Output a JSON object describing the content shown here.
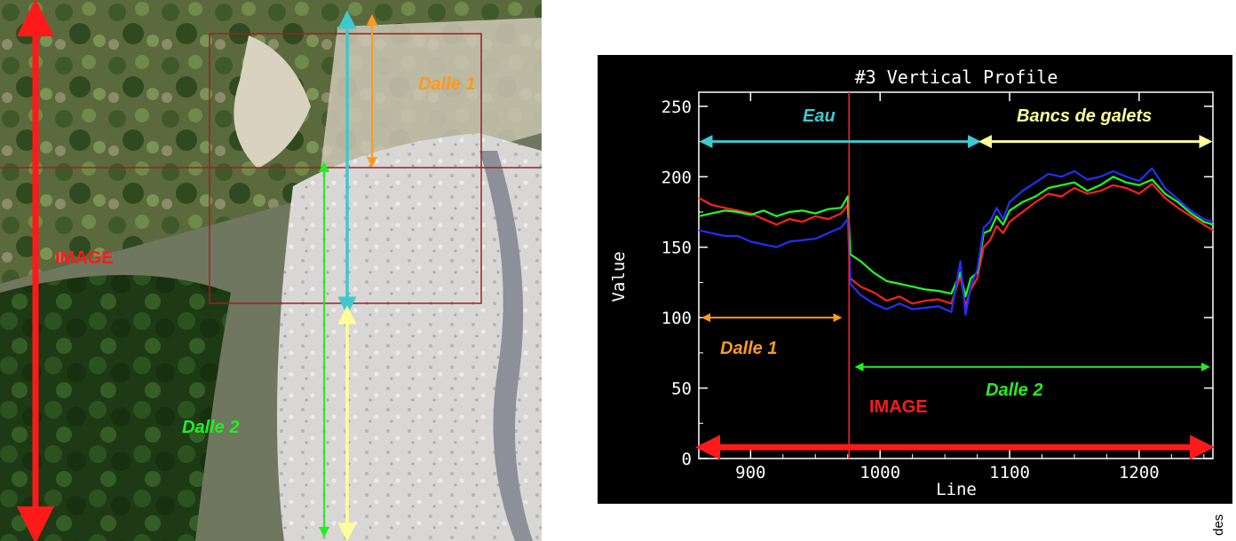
{
  "aerial": {
    "labels": {
      "image": "IMAGE",
      "dalle1": "Dalle 1",
      "dalle2": "Dalle 2"
    },
    "colors": {
      "image": "#ff1a1a",
      "dalle1": "#ff9a1a",
      "dalle2": "#22ee22",
      "eau": "#3ec8d0",
      "galets": "#ffff99",
      "frame": "#a02020"
    }
  },
  "chart_data": {
    "type": "line",
    "title": "#3 Vertical Profile",
    "xlabel": "Line",
    "ylabel": "Value",
    "xlim": [
      860,
      1257
    ],
    "ylim": [
      0,
      260
    ],
    "xticks": [
      900,
      1000,
      1100,
      1200
    ],
    "yticks": [
      0,
      50,
      100,
      150,
      200,
      250
    ],
    "grid": false,
    "split_line_x": 976,
    "x": [
      860,
      870,
      880,
      890,
      900,
      910,
      920,
      930,
      940,
      950,
      960,
      970,
      975,
      977,
      985,
      995,
      1005,
      1015,
      1025,
      1035,
      1045,
      1055,
      1062,
      1066,
      1070,
      1075,
      1080,
      1085,
      1090,
      1095,
      1100,
      1110,
      1120,
      1130,
      1140,
      1150,
      1160,
      1170,
      1180,
      1190,
      1200,
      1210,
      1220,
      1230,
      1240,
      1250,
      1257
    ],
    "series": [
      {
        "name": "",
        "color": "#ff2020",
        "values": [
          185,
          180,
          178,
          176,
          174,
          170,
          166,
          170,
          168,
          172,
          170,
          174,
          180,
          128,
          122,
          118,
          112,
          115,
          110,
          112,
          113,
          110,
          130,
          108,
          120,
          128,
          150,
          155,
          165,
          160,
          168,
          175,
          182,
          188,
          186,
          192,
          188,
          190,
          194,
          192,
          188,
          195,
          185,
          178,
          172,
          166,
          162
        ]
      },
      {
        "name": "",
        "color": "#20ff20",
        "values": [
          172,
          174,
          176,
          175,
          173,
          176,
          172,
          175,
          176,
          174,
          177,
          178,
          186,
          145,
          140,
          132,
          126,
          124,
          122,
          120,
          119,
          117,
          132,
          115,
          128,
          132,
          160,
          162,
          172,
          166,
          176,
          182,
          186,
          192,
          194,
          196,
          190,
          194,
          200,
          196,
          194,
          198,
          188,
          182,
          174,
          168,
          166
        ]
      },
      {
        "name": "",
        "color": "#2030ff",
        "values": [
          162,
          160,
          158,
          158,
          154,
          152,
          150,
          154,
          155,
          156,
          160,
          164,
          170,
          124,
          116,
          110,
          106,
          110,
          106,
          107,
          108,
          104,
          140,
          102,
          122,
          134,
          164,
          168,
          178,
          170,
          182,
          190,
          196,
          202,
          200,
          204,
          198,
          200,
          204,
          200,
          197,
          206,
          192,
          184,
          176,
          170,
          168
        ]
      }
    ],
    "annotations": {
      "eau": "Eau",
      "bancs": "Bancs de galets",
      "dalle1": "Dalle 1",
      "dalle2": "Dalle 2",
      "image": "IMAGE"
    },
    "annotation_ranges": {
      "eau": [
        860,
        1077
      ],
      "bancs": [
        1077,
        1257
      ],
      "dalle1": [
        860,
        970
      ],
      "dalle2": [
        981,
        1257
      ],
      "image": [
        860,
        1257
      ]
    },
    "annotation_values": {
      "eau_y": 225,
      "dalle1_y": 100,
      "dalle2_y": 65,
      "image_y": 8
    },
    "annotation_colors": {
      "eau": "#3ec8d0",
      "bancs": "#ffff99",
      "dalle1": "#ff9a1a",
      "dalle2": "#22ee22",
      "image": "#ff1a1a",
      "split": "#ff2020"
    }
  },
  "side_note": "des"
}
